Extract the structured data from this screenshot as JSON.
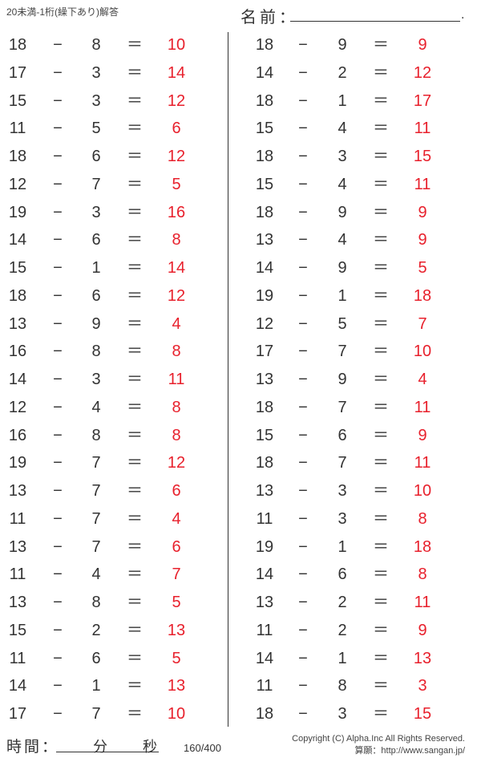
{
  "header": {
    "title": "20未満-1桁(繰下あり)解答",
    "name_label": "名前：",
    "name_dot": "."
  },
  "footer": {
    "time_label": "時間：",
    "minutes_label": "分",
    "seconds_label": "秒",
    "page": "160/400",
    "copyright": "Copyright (C) Alpha.Inc All Rights Reserved.",
    "site": "算願：http://www.sangan.jp/"
  },
  "colors": {
    "answer": "#e8202c",
    "text": "#333333"
  },
  "operator": "−",
  "equals": "＝",
  "left": [
    [
      18,
      8,
      10
    ],
    [
      17,
      3,
      14
    ],
    [
      15,
      3,
      12
    ],
    [
      11,
      5,
      6
    ],
    [
      18,
      6,
      12
    ],
    [
      12,
      7,
      5
    ],
    [
      19,
      3,
      16
    ],
    [
      14,
      6,
      8
    ],
    [
      15,
      1,
      14
    ],
    [
      18,
      6,
      12
    ],
    [
      13,
      9,
      4
    ],
    [
      16,
      8,
      8
    ],
    [
      14,
      3,
      11
    ],
    [
      12,
      4,
      8
    ],
    [
      16,
      8,
      8
    ],
    [
      19,
      7,
      12
    ],
    [
      13,
      7,
      6
    ],
    [
      11,
      7,
      4
    ],
    [
      13,
      7,
      6
    ],
    [
      11,
      4,
      7
    ],
    [
      13,
      8,
      5
    ],
    [
      15,
      2,
      13
    ],
    [
      11,
      6,
      5
    ],
    [
      14,
      1,
      13
    ],
    [
      17,
      7,
      10
    ]
  ],
  "right": [
    [
      18,
      9,
      9
    ],
    [
      14,
      2,
      12
    ],
    [
      18,
      1,
      17
    ],
    [
      15,
      4,
      11
    ],
    [
      18,
      3,
      15
    ],
    [
      15,
      4,
      11
    ],
    [
      18,
      9,
      9
    ],
    [
      13,
      4,
      9
    ],
    [
      14,
      9,
      5
    ],
    [
      19,
      1,
      18
    ],
    [
      12,
      5,
      7
    ],
    [
      17,
      7,
      10
    ],
    [
      13,
      9,
      4
    ],
    [
      18,
      7,
      11
    ],
    [
      15,
      6,
      9
    ],
    [
      18,
      7,
      11
    ],
    [
      13,
      3,
      10
    ],
    [
      11,
      3,
      8
    ],
    [
      19,
      1,
      18
    ],
    [
      14,
      6,
      8
    ],
    [
      13,
      2,
      11
    ],
    [
      11,
      2,
      9
    ],
    [
      14,
      1,
      13
    ],
    [
      11,
      8,
      3
    ],
    [
      18,
      3,
      15
    ]
  ]
}
